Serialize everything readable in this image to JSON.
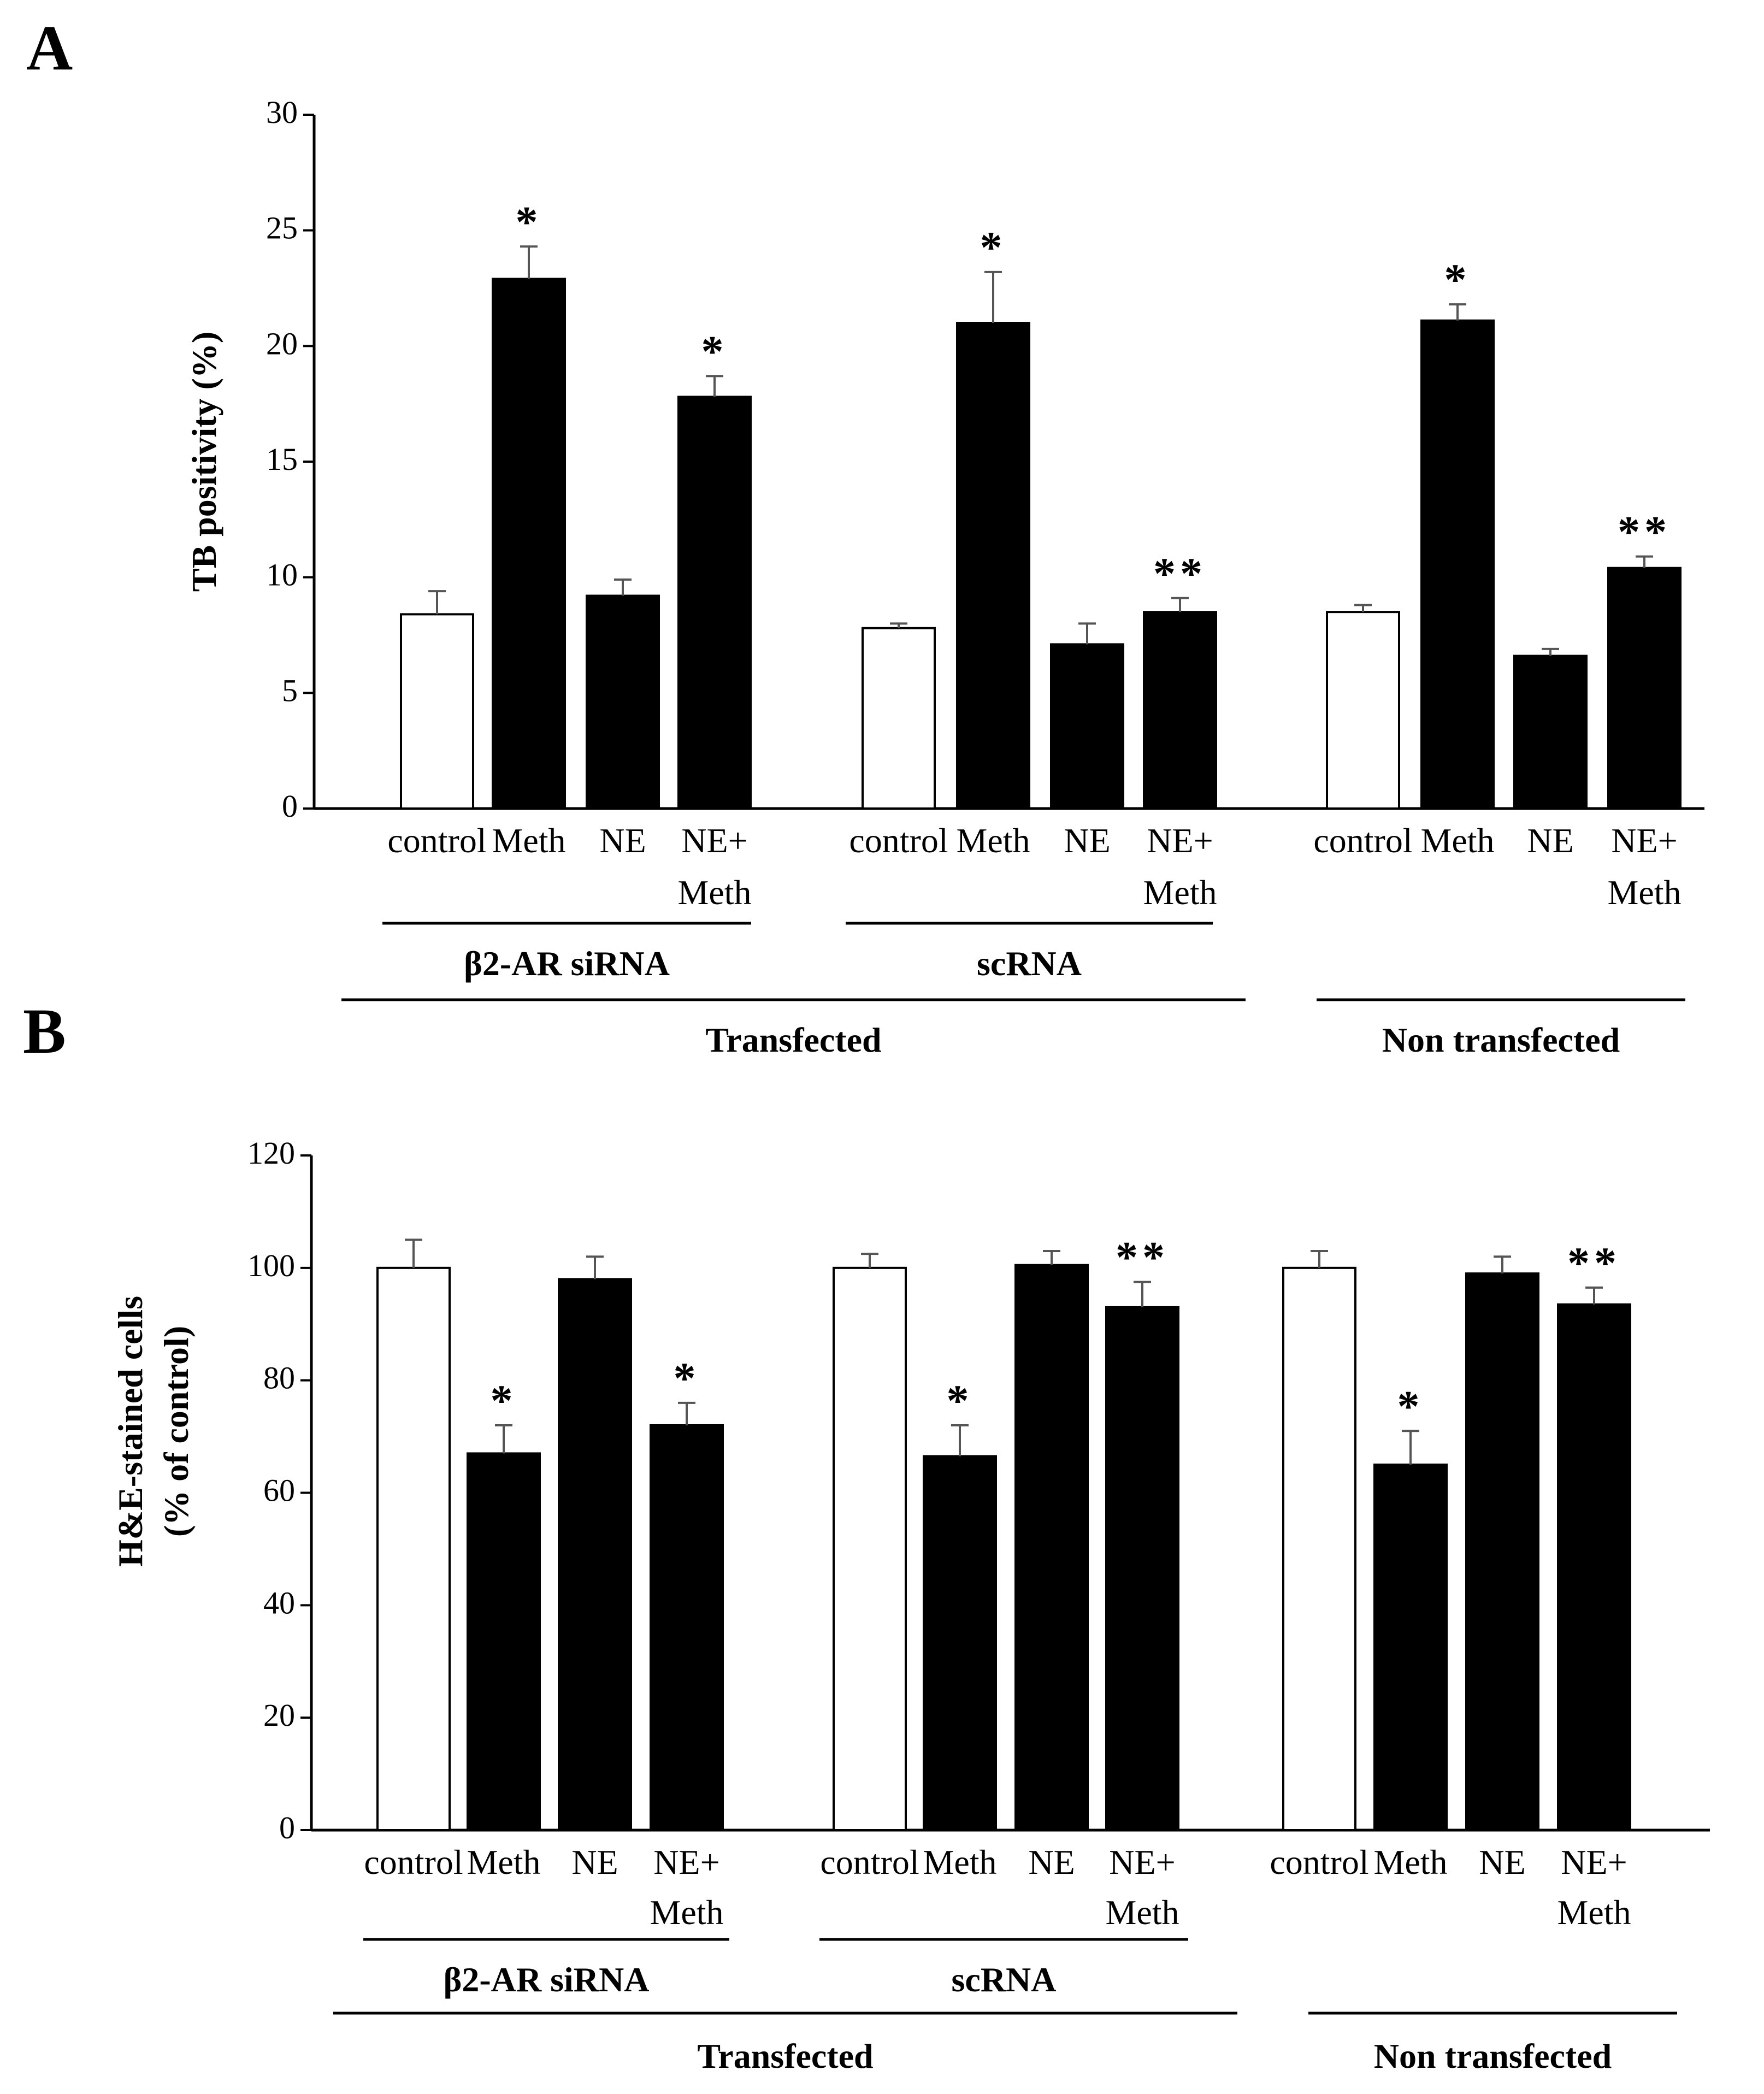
{
  "panels": {
    "A": "A",
    "B": "B"
  },
  "colors": {
    "control_bar": "#ffffff",
    "treatment_bar": "#000000",
    "error_bar": "#555555",
    "axis": "#000000"
  },
  "chart_data": [
    {
      "type": "bar",
      "panel": "A",
      "ylabel": "TB positivity (%)",
      "ylim": [
        0,
        30
      ],
      "yticks": [
        0,
        5,
        10,
        15,
        20,
        25,
        30
      ],
      "grid": false,
      "groups": [
        {
          "subgroup": "β2-AR siRNA",
          "supergroup": "Transfected",
          "categories": [
            "control",
            "Meth",
            "NE",
            "NE+\nMeth"
          ],
          "values": [
            8.4,
            22.9,
            9.2,
            17.8
          ],
          "errors": [
            1.0,
            1.4,
            0.7,
            0.9
          ],
          "annotations": [
            "",
            "*",
            "",
            "*"
          ]
        },
        {
          "subgroup": "scRNA",
          "supergroup": "Transfected",
          "categories": [
            "control",
            "Meth",
            "NE",
            "NE+\nMeth"
          ],
          "values": [
            7.8,
            21.0,
            7.1,
            8.5
          ],
          "errors": [
            0.2,
            2.2,
            0.9,
            0.6
          ],
          "annotations": [
            "",
            "*",
            "",
            "**"
          ]
        },
        {
          "subgroup": "",
          "supergroup": "Non transfected",
          "categories": [
            "control",
            "Meth",
            "NE",
            "NE+\nMeth"
          ],
          "values": [
            8.5,
            21.1,
            6.6,
            10.4
          ],
          "errors": [
            0.3,
            0.7,
            0.3,
            0.5
          ],
          "annotations": [
            "",
            "*",
            "",
            "**"
          ]
        }
      ]
    },
    {
      "type": "bar",
      "panel": "B",
      "ylabel": "H&E-stained cells\n(% of control)",
      "ylim": [
        0,
        120
      ],
      "yticks": [
        0,
        20,
        40,
        60,
        80,
        100,
        120
      ],
      "grid": false,
      "groups": [
        {
          "subgroup": "β2-AR siRNA",
          "supergroup": "Transfected",
          "categories": [
            "control",
            "Meth",
            "NE",
            "NE+\nMeth"
          ],
          "values": [
            100,
            67,
            98,
            72
          ],
          "errors": [
            5,
            5,
            4,
            4
          ],
          "annotations": [
            "",
            "*",
            "",
            "*"
          ]
        },
        {
          "subgroup": "scRNA",
          "supergroup": "Transfected",
          "categories": [
            "control",
            "Meth",
            "NE",
            "NE+\nMeth"
          ],
          "values": [
            100,
            66.5,
            100.5,
            93
          ],
          "errors": [
            2.5,
            5.5,
            2.5,
            4.5
          ],
          "annotations": [
            "",
            "*",
            "",
            "**"
          ]
        },
        {
          "subgroup": "",
          "supergroup": "Non transfected",
          "categories": [
            "control",
            "Meth",
            "NE",
            "NE+\nMeth"
          ],
          "values": [
            100,
            65,
            99,
            93.5
          ],
          "errors": [
            3,
            6,
            3,
            3
          ],
          "annotations": [
            "",
            "*",
            "",
            "**"
          ]
        }
      ]
    }
  ]
}
